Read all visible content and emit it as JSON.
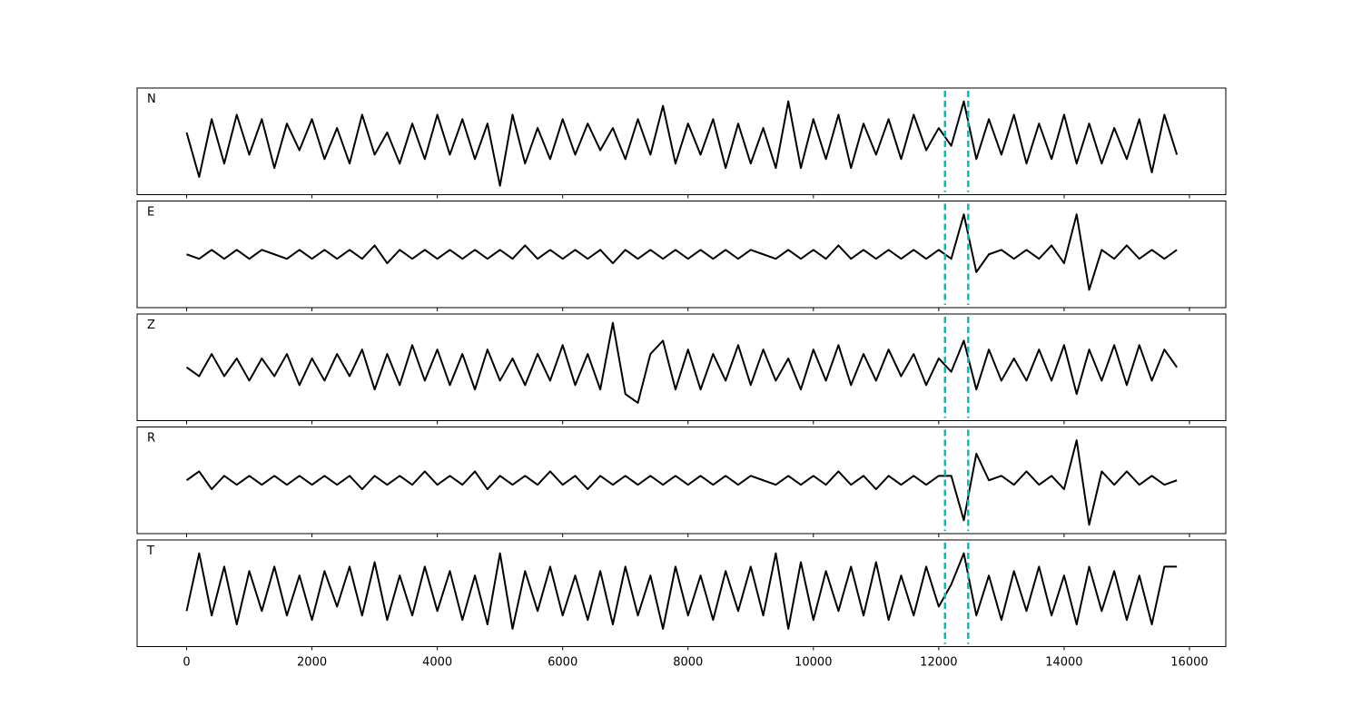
{
  "chart_data": {
    "type": "line",
    "layout": "stacked",
    "color": "#000000",
    "x": [
      0,
      200,
      400,
      600,
      800,
      1000,
      1200,
      1400,
      1600,
      1800,
      2000,
      2200,
      2400,
      2600,
      2800,
      3000,
      3200,
      3400,
      3600,
      3800,
      4000,
      4200,
      4400,
      4600,
      4800,
      5000,
      5200,
      5400,
      5600,
      5800,
      6000,
      6200,
      6400,
      6600,
      6800,
      7000,
      7200,
      7400,
      7600,
      7800,
      8000,
      8200,
      8400,
      8600,
      8800,
      9000,
      9200,
      9400,
      9600,
      9800,
      10000,
      10200,
      10400,
      10600,
      10800,
      11000,
      11200,
      11400,
      11600,
      11800,
      12000,
      12200,
      12400,
      12600,
      12800,
      13000,
      13200,
      13400,
      13600,
      13800,
      14000,
      14200,
      14400,
      14600,
      14800,
      15000,
      15200,
      15400,
      15600,
      15800
    ],
    "xlim": [
      -790,
      16580
    ],
    "xticks": [
      0,
      2000,
      4000,
      6000,
      8000,
      10000,
      12000,
      14000,
      16000
    ],
    "ylim": [
      -1.2,
      1.2
    ],
    "vlines": [
      12100,
      12470
    ],
    "vline_color": "#00bfbf",
    "series": [
      {
        "name": "N",
        "values": [
          0.2,
          -0.8,
          0.5,
          -0.5,
          0.6,
          -0.3,
          0.5,
          -0.6,
          0.4,
          -0.2,
          0.5,
          -0.4,
          0.3,
          -0.5,
          0.6,
          -0.3,
          0.2,
          -0.5,
          0.4,
          -0.4,
          0.6,
          -0.3,
          0.5,
          -0.4,
          0.4,
          -1.0,
          0.6,
          -0.5,
          0.3,
          -0.4,
          0.5,
          -0.3,
          0.4,
          -0.2,
          0.3,
          -0.4,
          0.5,
          -0.3,
          0.8,
          -0.5,
          0.4,
          -0.3,
          0.5,
          -0.6,
          0.4,
          -0.5,
          0.3,
          -0.6,
          0.9,
          -0.6,
          0.5,
          -0.4,
          0.6,
          -0.6,
          0.4,
          -0.3,
          0.5,
          -0.4,
          0.6,
          -0.2,
          0.3,
          -0.1,
          0.9,
          -0.4,
          0.5,
          -0.3,
          0.6,
          -0.5,
          0.4,
          -0.4,
          0.6,
          -0.5,
          0.4,
          -0.5,
          0.3,
          -0.4,
          0.5,
          -0.7,
          0.6,
          -0.3
        ]
      },
      {
        "name": "E",
        "values": [
          0.0,
          -0.1,
          0.1,
          -0.1,
          0.1,
          -0.1,
          0.1,
          0.0,
          -0.1,
          0.1,
          -0.1,
          0.1,
          -0.1,
          0.1,
          -0.1,
          0.2,
          -0.2,
          0.1,
          -0.1,
          0.1,
          -0.1,
          0.1,
          -0.1,
          0.1,
          -0.1,
          0.1,
          -0.1,
          0.2,
          -0.1,
          0.1,
          -0.1,
          0.1,
          -0.1,
          0.1,
          -0.2,
          0.1,
          -0.1,
          0.1,
          -0.1,
          0.1,
          -0.1,
          0.1,
          -0.1,
          0.1,
          -0.1,
          0.1,
          0.0,
          -0.1,
          0.1,
          -0.1,
          0.1,
          -0.1,
          0.2,
          -0.1,
          0.1,
          -0.1,
          0.1,
          -0.1,
          0.1,
          -0.1,
          0.1,
          -0.1,
          0.9,
          -0.4,
          0.0,
          0.1,
          -0.1,
          0.1,
          -0.1,
          0.2,
          -0.2,
          0.9,
          -0.8,
          0.1,
          -0.1,
          0.2,
          -0.1,
          0.1,
          -0.1,
          0.1
        ]
      },
      {
        "name": "Z",
        "values": [
          0.0,
          -0.2,
          0.3,
          -0.2,
          0.2,
          -0.3,
          0.2,
          -0.2,
          0.3,
          -0.4,
          0.2,
          -0.3,
          0.3,
          -0.2,
          0.4,
          -0.5,
          0.3,
          -0.4,
          0.5,
          -0.3,
          0.4,
          -0.4,
          0.3,
          -0.5,
          0.4,
          -0.3,
          0.2,
          -0.4,
          0.3,
          -0.3,
          0.5,
          -0.4,
          0.3,
          -0.5,
          1.0,
          -0.6,
          -0.8,
          0.3,
          0.6,
          -0.5,
          0.4,
          -0.5,
          0.3,
          -0.3,
          0.5,
          -0.4,
          0.4,
          -0.3,
          0.2,
          -0.5,
          0.4,
          -0.3,
          0.5,
          -0.4,
          0.3,
          -0.3,
          0.4,
          -0.2,
          0.3,
          -0.4,
          0.2,
          -0.1,
          0.6,
          -0.5,
          0.4,
          -0.3,
          0.2,
          -0.3,
          0.4,
          -0.3,
          0.5,
          -0.6,
          0.4,
          -0.3,
          0.5,
          -0.4,
          0.5,
          -0.3,
          0.4,
          0.0
        ]
      },
      {
        "name": "R",
        "values": [
          0.0,
          0.2,
          -0.2,
          0.1,
          -0.1,
          0.1,
          -0.1,
          0.1,
          -0.1,
          0.1,
          -0.1,
          0.1,
          -0.1,
          0.1,
          -0.2,
          0.1,
          -0.1,
          0.1,
          -0.1,
          0.2,
          -0.1,
          0.1,
          -0.1,
          0.2,
          -0.2,
          0.1,
          -0.1,
          0.1,
          -0.1,
          0.2,
          -0.1,
          0.1,
          -0.2,
          0.1,
          -0.1,
          0.1,
          -0.1,
          0.1,
          -0.1,
          0.1,
          -0.1,
          0.1,
          -0.1,
          0.1,
          -0.1,
          0.1,
          0.0,
          -0.1,
          0.1,
          -0.1,
          0.1,
          -0.1,
          0.2,
          -0.1,
          0.1,
          -0.2,
          0.1,
          -0.1,
          0.1,
          -0.1,
          0.1,
          0.1,
          -0.9,
          0.6,
          0.0,
          0.1,
          -0.1,
          0.2,
          -0.1,
          0.1,
          -0.2,
          0.9,
          -1.0,
          0.2,
          -0.1,
          0.2,
          -0.1,
          0.1,
          -0.1,
          0.0
        ]
      },
      {
        "name": "T",
        "values": [
          -0.4,
          0.9,
          -0.5,
          0.6,
          -0.7,
          0.5,
          -0.4,
          0.6,
          -0.5,
          0.4,
          -0.6,
          0.5,
          -0.3,
          0.6,
          -0.5,
          0.7,
          -0.6,
          0.4,
          -0.5,
          0.6,
          -0.4,
          0.5,
          -0.6,
          0.4,
          -0.7,
          0.9,
          -0.8,
          0.5,
          -0.4,
          0.6,
          -0.5,
          0.4,
          -0.6,
          0.5,
          -0.7,
          0.6,
          -0.5,
          0.4,
          -0.8,
          0.6,
          -0.5,
          0.4,
          -0.6,
          0.5,
          -0.4,
          0.6,
          -0.5,
          0.9,
          -0.8,
          0.7,
          -0.6,
          0.5,
          -0.4,
          0.6,
          -0.5,
          0.7,
          -0.6,
          0.4,
          -0.5,
          0.6,
          -0.3,
          0.2,
          0.9,
          -0.5,
          0.4,
          -0.6,
          0.5,
          -0.4,
          0.6,
          -0.5,
          0.4,
          -0.7,
          0.6,
          -0.4,
          0.5,
          -0.6,
          0.4,
          -0.7,
          0.6,
          0.6
        ]
      }
    ]
  }
}
